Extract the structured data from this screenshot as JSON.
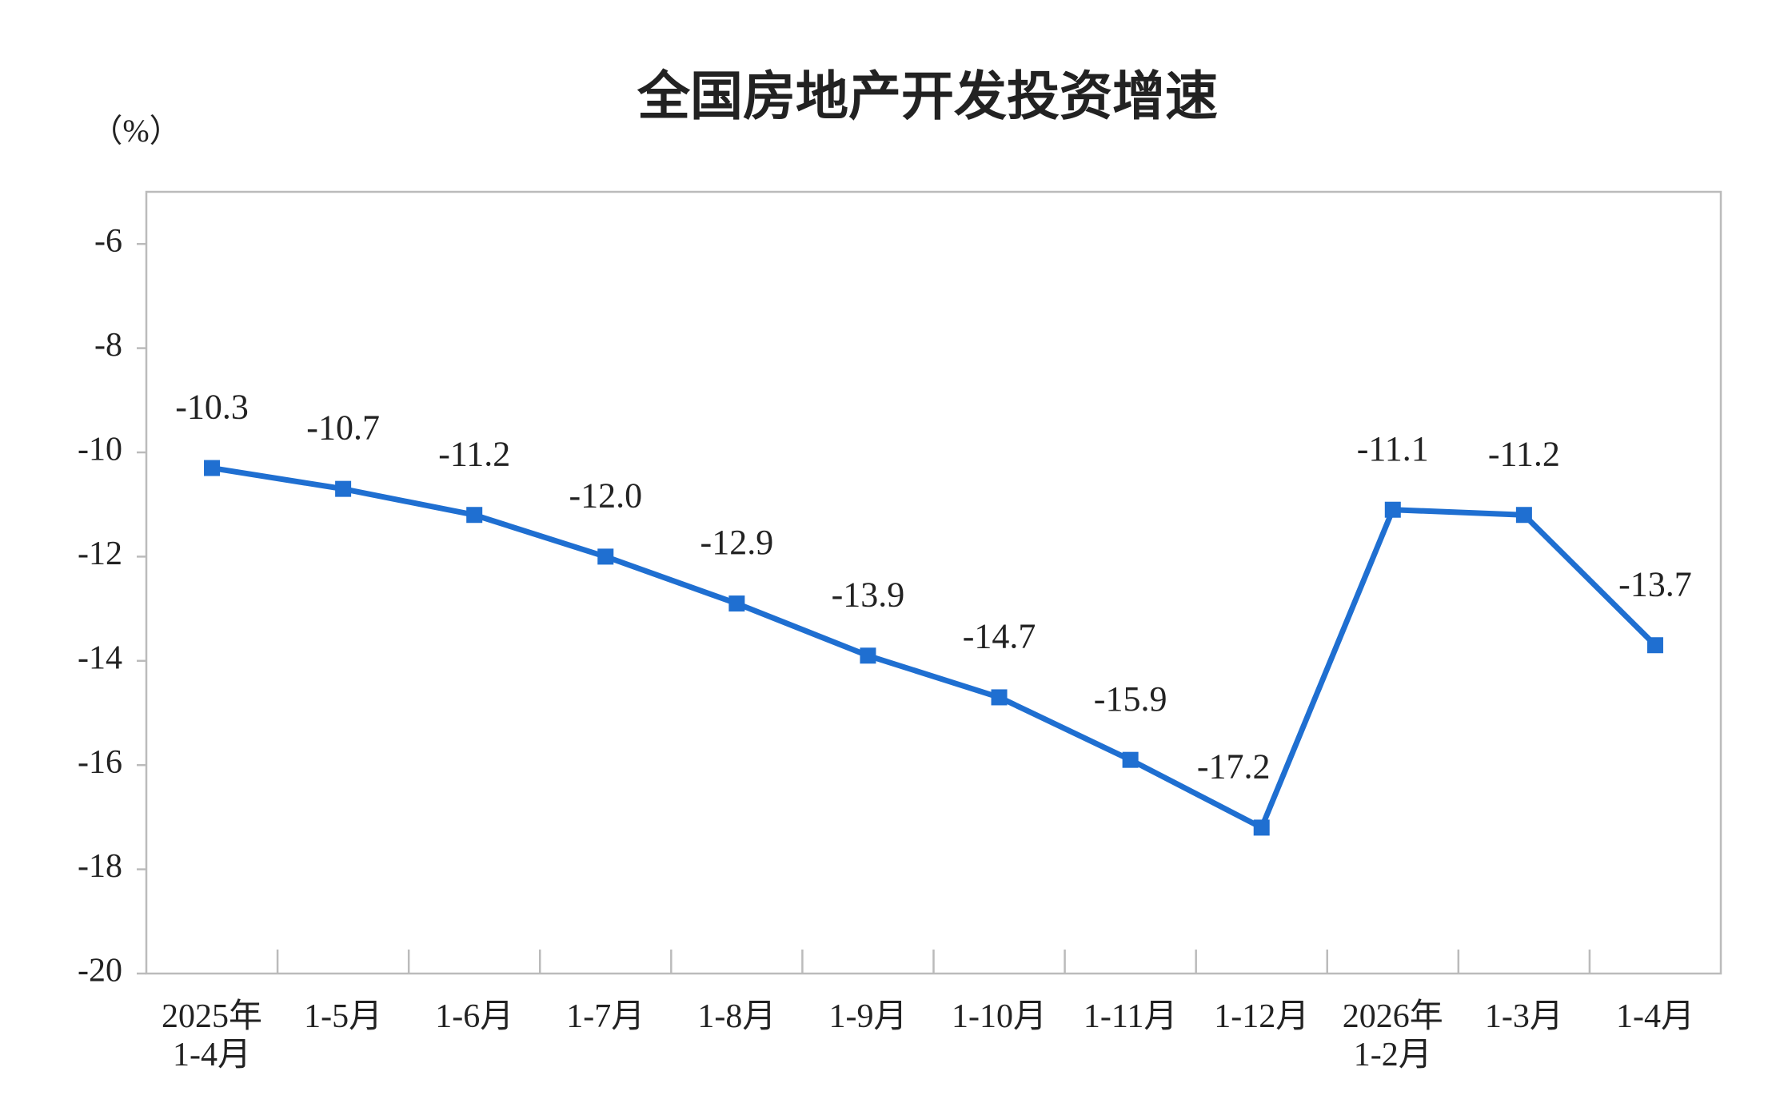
{
  "chart_data": {
    "type": "line",
    "title": "全国房地产开发投资增速",
    "y_label": "（%）",
    "categories": [
      "2025年\n1-4月",
      "1-5月",
      "1-6月",
      "1-7月",
      "1-8月",
      "1-9月",
      "1-10月",
      "1-11月",
      "1-12月",
      "2026年\n1-2月",
      "1-3月",
      "1-4月"
    ],
    "series": [
      {
        "name": "全国房地产开发投资增速",
        "color": "#1f6fd1",
        "values": [
          -10.3,
          -10.7,
          -11.2,
          -12.0,
          -12.9,
          -13.9,
          -14.7,
          -15.9,
          -17.2,
          -11.1,
          -11.2,
          -13.7
        ],
        "value_labels": [
          "-10.3",
          "-10.7",
          "-11.2",
          "-12.0",
          "-12.9",
          "-13.9",
          "-14.7",
          "-15.9",
          "-17.2",
          "-11.1",
          "-11.2",
          "-13.7"
        ]
      }
    ],
    "ylim": [
      -20,
      -5
    ],
    "yticks": [
      -20,
      -18,
      -16,
      -14,
      -12,
      -10,
      -8,
      -6
    ],
    "grid": false
  }
}
